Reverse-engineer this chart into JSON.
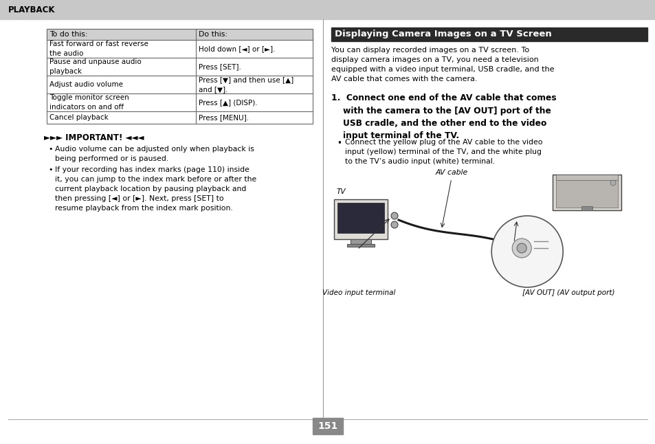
{
  "page_bg": "#ffffff",
  "header_bg": "#c8c8c8",
  "header_text": "PLAYBACK",
  "table_header_bg": "#d0d0d0",
  "table_col1_header": "To do this:",
  "table_col2_header": "Do this:",
  "table_rows": [
    [
      "Fast forward or fast reverse\nthe audio",
      "Hold down [◄] or [►]."
    ],
    [
      "Pause and unpause audio\nplayback",
      "Press [SET]."
    ],
    [
      "Adjust audio volume",
      "Press [▼] and then use [▲]\nand [▼]."
    ],
    [
      "Toggle monitor screen\nindicators on and off",
      "Press [▲] (DISP)."
    ],
    [
      "Cancel playback",
      "Press [MENU]."
    ]
  ],
  "important_label": "►►► IMPORTANT! ◄◄◄",
  "important_bullets": [
    "Audio volume can be adjusted only when playback is\nbeing performed or is paused.",
    "If your recording has index marks (page 110) inside\nit, you can jump to the index mark before or after the\ncurrent playback location by pausing playback and\nthen pressing [◄] or [►]. Next, press [SET] to\nresume playback from the index mark position."
  ],
  "section_title": "Displaying Camera Images on a TV Screen",
  "section_title_bg": "#2a2a2a",
  "section_title_color": "#ffffff",
  "section_intro": "You can display recorded images on a TV screen. To\ndisplay camera images on a TV, you need a television\nequipped with a video input terminal, USB cradle, and the\nAV cable that comes with the camera.",
  "step1_text": "1.  Connect one end of the AV cable that comes\n    with the camera to the [AV OUT] port of the\n    USB cradle, and the other end to the video\n    input terminal of the TV.",
  "step1_bullet": "Connect the yellow plug of the AV cable to the video\ninput (yellow) terminal of the TV, and the white plug\nto the TV’s audio input (white) terminal.",
  "caption_av_cable": "AV cable",
  "caption_tv": "TV",
  "caption_video_input": "Video input terminal",
  "caption_av_out": "[AV OUT] (AV output port)",
  "page_number": "151",
  "page_num_bg": "#888888",
  "page_num_color": "#ffffff"
}
